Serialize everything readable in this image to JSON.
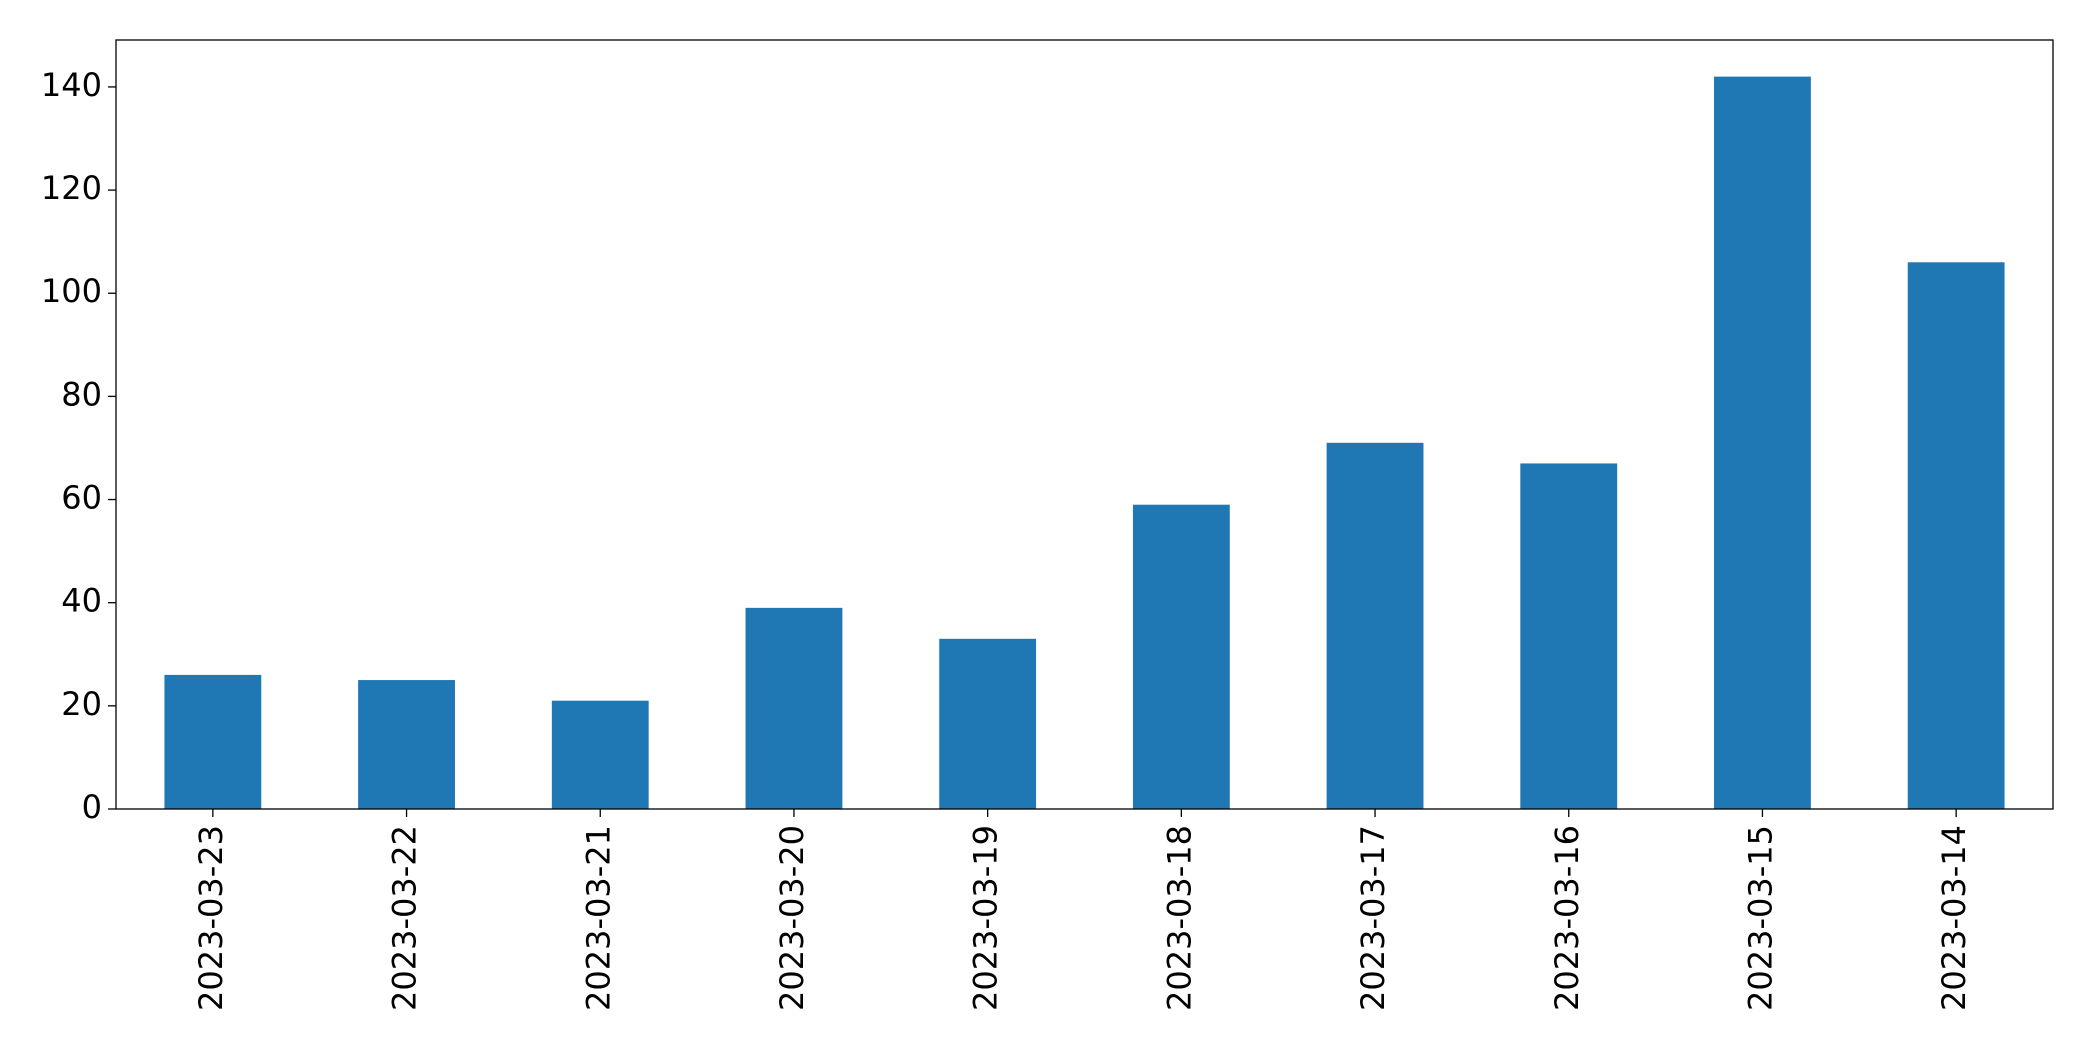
{
  "chart_data": {
    "type": "bar",
    "categories": [
      "2023-03-23",
      "2023-03-22",
      "2023-03-21",
      "2023-03-20",
      "2023-03-19",
      "2023-03-18",
      "2023-03-17",
      "2023-03-16",
      "2023-03-15",
      "2023-03-14"
    ],
    "values": [
      26,
      25,
      21,
      39,
      33,
      59,
      71,
      67,
      142,
      106
    ],
    "color": "#1f77b4",
    "ylim": [
      0,
      149.1
    ],
    "yticks": [
      0,
      20,
      40,
      60,
      80,
      100,
      120,
      140
    ],
    "grid": false
  }
}
